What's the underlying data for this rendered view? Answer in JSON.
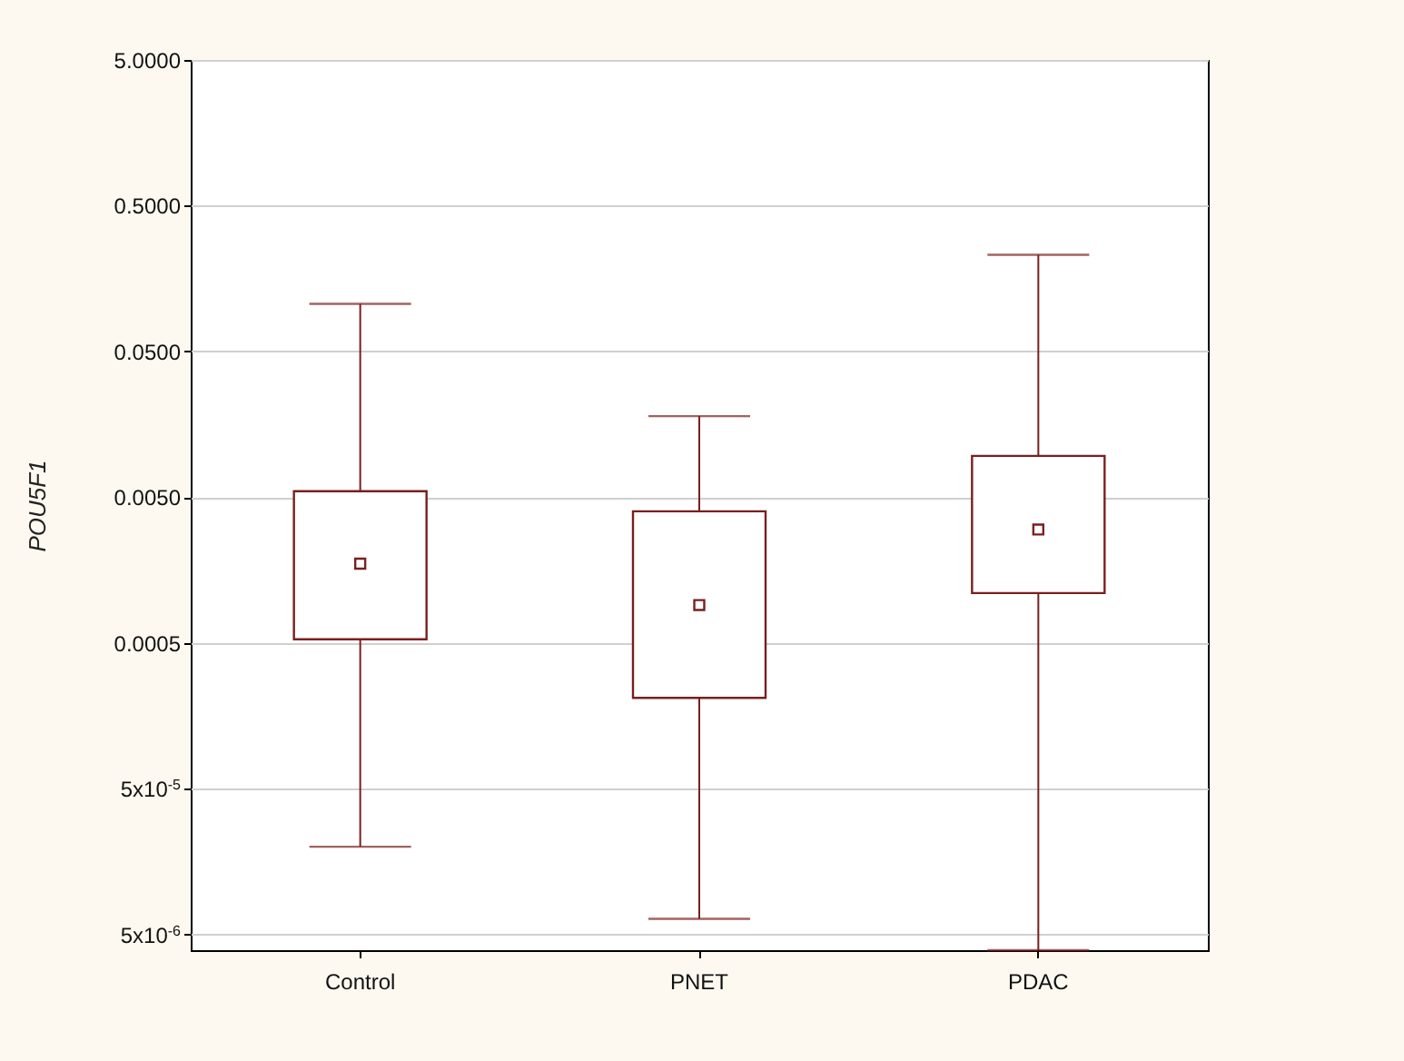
{
  "chart_data": {
    "type": "box",
    "ylabel": "POU5F1",
    "categories": [
      "Control",
      "PNET",
      "PDAC"
    ],
    "series": [
      {
        "color": "#7a1f1f",
        "boxes": [
          {
            "low": 2e-05,
            "q1": 0.00053,
            "median": 0.00175,
            "q3": 0.0055,
            "high": 0.106
          },
          {
            "low": 6.4e-06,
            "q1": 0.00021,
            "median": 0.00091,
            "q3": 0.004,
            "high": 0.018
          },
          {
            "low": 3.9e-06,
            "q1": 0.0011,
            "median": 0.003,
            "q3": 0.0096,
            "high": 0.23
          }
        ]
      }
    ],
    "log": "y",
    "ylim": [
      3.9e-06,
      5
    ],
    "yticks": [
      {
        "value": 5e-06,
        "label": "5x10$^{-6}$"
      },
      {
        "value": 5e-05,
        "label": "5x10$^{-5}$"
      },
      {
        "value": 0.0005,
        "label": "0.0005"
      },
      {
        "value": 0.005,
        "label": "0.0050"
      },
      {
        "value": 0.05,
        "label": "0.0500"
      },
      {
        "value": 0.5,
        "label": "0.5000"
      },
      {
        "value": 5,
        "label": "5.0000"
      }
    ],
    "grid": "y"
  }
}
